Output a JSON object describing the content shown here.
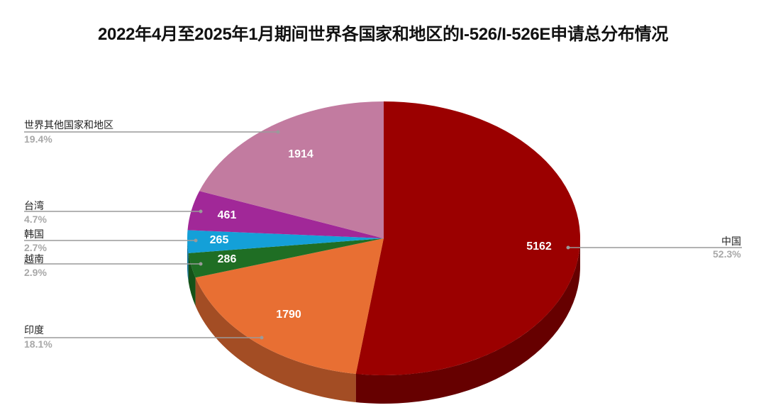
{
  "chart_data": {
    "type": "pie",
    "style": "3d",
    "title": "2022年4月至2025年1月期间世界各国家和地区的I-526/I-526E申请总分布情况",
    "start_angle": "12 o'clock, clockwise",
    "slices": [
      {
        "label": "中国",
        "value": 5162,
        "percent": "52.3%",
        "color": "#9b0000",
        "side_color": "#660000"
      },
      {
        "label": "印度",
        "value": 1790,
        "percent": "18.1%",
        "color": "#e86f33",
        "side_color": "#a34d24"
      },
      {
        "label": "越南",
        "value": 286,
        "percent": "2.9%",
        "color": "#1f6e24",
        "side_color": "#145218"
      },
      {
        "label": "韩国",
        "value": 265,
        "percent": "2.7%",
        "color": "#14a0d8",
        "side_color": "#0e7099"
      },
      {
        "label": "台湾",
        "value": 461,
        "percent": "4.7%",
        "color": "#a12898",
        "side_color": "#711c6b"
      },
      {
        "label": "世界其他国家和地区",
        "value": 1914,
        "percent": "19.4%",
        "color": "#c27ba0",
        "side_color": "#8a5772"
      }
    ],
    "legend": "none (callout labels with leader lines)",
    "data_labels": "values inside slices, name and percent outside"
  },
  "title": "2022年4月至2025年1月期间世界各国家和地区的I-526/I-526E申请总分布情况",
  "labels": {
    "china": {
      "name": "中国",
      "pct": "52.3%",
      "value": "5162"
    },
    "india": {
      "name": "印度",
      "pct": "18.1%",
      "value": "1790"
    },
    "vietnam": {
      "name": "越南",
      "pct": "2.9%",
      "value": "286"
    },
    "korea": {
      "name": "韩国",
      "pct": "2.7%",
      "value": "265"
    },
    "taiwan": {
      "name": "台湾",
      "pct": "4.7%",
      "value": "461"
    },
    "other": {
      "name": "世界其他国家和地区",
      "pct": "19.4%",
      "value": "1914"
    }
  }
}
